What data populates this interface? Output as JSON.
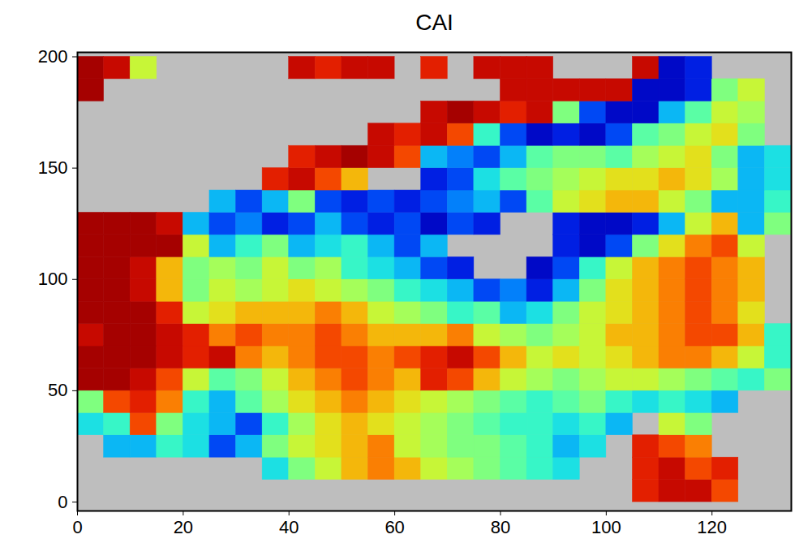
{
  "chart_data": {
    "type": "heatmap",
    "title": "CAI",
    "xlim": [
      0,
      135
    ],
    "xticks": [
      0,
      20,
      40,
      60,
      80,
      100,
      120
    ],
    "ylim": [
      -4,
      202
    ],
    "yticks": [
      0,
      50,
      100,
      150,
      200
    ],
    "color_range": [
      0,
      1
    ],
    "x_edges": [
      0,
      5,
      10,
      15,
      20,
      25,
      30,
      35,
      40,
      45,
      50,
      55,
      60,
      65,
      70,
      75,
      80,
      85,
      90,
      95,
      100,
      105,
      110,
      115,
      120,
      125,
      130,
      135
    ],
    "y_edges": [
      0,
      10,
      20,
      30,
      40,
      50,
      60,
      70,
      80,
      90,
      100,
      110,
      120,
      130,
      140,
      150,
      160,
      170,
      180,
      190,
      200
    ],
    "z": [
      [
        null,
        null,
        null,
        null,
        null,
        null,
        null,
        null,
        null,
        null,
        null,
        null,
        null,
        null,
        null,
        null,
        null,
        null,
        null,
        null,
        null,
        0.85,
        0.9,
        0.9,
        0.8,
        null,
        null
      ],
      [
        null,
        null,
        null,
        null,
        null,
        null,
        null,
        0.35,
        0.5,
        0.6,
        0.7,
        0.75,
        0.7,
        0.6,
        0.55,
        0.5,
        0.45,
        0.4,
        0.35,
        null,
        null,
        0.85,
        0.9,
        0.8,
        0.85,
        null,
        null
      ],
      [
        null,
        0.3,
        0.3,
        0.4,
        0.35,
        0.2,
        0.3,
        0.5,
        0.6,
        0.65,
        0.7,
        0.75,
        0.6,
        0.55,
        0.5,
        0.5,
        0.45,
        0.4,
        0.3,
        0.35,
        null,
        0.85,
        0.8,
        0.75,
        null,
        null,
        null
      ],
      [
        0.35,
        0.4,
        0.8,
        0.5,
        0.35,
        0.3,
        0.2,
        0.4,
        0.55,
        0.65,
        0.7,
        0.65,
        0.6,
        0.55,
        0.5,
        0.45,
        0.4,
        0.4,
        0.35,
        0.4,
        0.3,
        null,
        0.6,
        0.5,
        null,
        null,
        null
      ],
      [
        0.5,
        0.8,
        0.85,
        0.75,
        0.4,
        0.3,
        0.45,
        0.55,
        0.65,
        0.7,
        0.75,
        0.7,
        0.65,
        0.6,
        0.55,
        0.5,
        0.45,
        0.4,
        0.45,
        0.5,
        0.4,
        0.35,
        0.4,
        0.35,
        0.3,
        null,
        null
      ],
      [
        0.95,
        0.95,
        0.9,
        0.8,
        0.6,
        0.45,
        0.5,
        0.6,
        0.7,
        0.75,
        0.8,
        0.75,
        0.7,
        0.85,
        0.8,
        0.7,
        0.6,
        0.55,
        0.5,
        0.55,
        0.6,
        0.6,
        0.55,
        0.5,
        0.45,
        0.4,
        0.5
      ],
      [
        0.95,
        0.95,
        0.95,
        0.9,
        0.85,
        0.9,
        0.75,
        0.7,
        0.75,
        0.8,
        0.8,
        0.75,
        0.8,
        0.85,
        0.9,
        0.8,
        0.7,
        0.6,
        0.65,
        0.6,
        0.65,
        0.7,
        0.75,
        0.75,
        0.7,
        0.6,
        0.4
      ],
      [
        0.9,
        0.95,
        0.95,
        0.9,
        0.85,
        0.75,
        0.8,
        0.75,
        0.75,
        0.8,
        0.75,
        0.7,
        0.7,
        0.7,
        0.75,
        0.6,
        0.55,
        0.5,
        0.55,
        0.6,
        0.7,
        0.7,
        0.75,
        0.8,
        0.8,
        0.7,
        0.4
      ],
      [
        0.95,
        0.95,
        0.95,
        0.85,
        0.6,
        0.65,
        0.7,
        0.7,
        0.7,
        0.75,
        0.7,
        0.6,
        0.55,
        0.5,
        0.4,
        0.45,
        0.3,
        0.35,
        0.5,
        0.6,
        0.65,
        0.7,
        0.75,
        0.8,
        0.75,
        0.65,
        null
      ],
      [
        0.95,
        0.95,
        0.9,
        0.7,
        0.5,
        0.6,
        0.55,
        0.6,
        0.65,
        0.6,
        0.55,
        0.5,
        0.4,
        0.35,
        0.3,
        0.2,
        0.25,
        0.15,
        0.3,
        0.5,
        0.65,
        0.7,
        0.75,
        0.8,
        0.75,
        0.7,
        null
      ],
      [
        0.95,
        0.95,
        0.9,
        0.7,
        0.5,
        0.55,
        0.5,
        0.6,
        0.5,
        0.55,
        0.4,
        0.35,
        0.3,
        0.2,
        0.15,
        null,
        null,
        0.1,
        0.2,
        0.4,
        0.6,
        0.7,
        0.75,
        0.8,
        0.75,
        0.7,
        null
      ],
      [
        0.95,
        0.95,
        0.95,
        0.95,
        0.6,
        0.3,
        0.4,
        0.5,
        0.3,
        0.35,
        0.4,
        0.3,
        0.2,
        0.3,
        null,
        null,
        null,
        null,
        0.15,
        0.1,
        0.2,
        0.5,
        0.65,
        0.75,
        0.8,
        0.6,
        null
      ],
      [
        0.95,
        0.95,
        0.95,
        0.9,
        0.3,
        0.2,
        0.25,
        0.15,
        0.2,
        0.3,
        0.2,
        0.15,
        0.2,
        0.1,
        0.2,
        0.15,
        null,
        null,
        0.15,
        0.1,
        0.1,
        0.15,
        0.3,
        0.6,
        0.7,
        0.3,
        0.5
      ],
      [
        null,
        null,
        null,
        null,
        null,
        0.3,
        0.2,
        0.3,
        0.5,
        0.2,
        0.15,
        0.2,
        0.15,
        0.2,
        0.25,
        0.3,
        0.2,
        0.45,
        0.6,
        0.65,
        0.7,
        0.7,
        0.6,
        0.5,
        0.3,
        0.3,
        0.4
      ],
      [
        null,
        null,
        null,
        null,
        null,
        null,
        null,
        0.85,
        0.9,
        0.8,
        0.7,
        null,
        null,
        0.15,
        0.2,
        0.35,
        0.45,
        0.5,
        0.55,
        0.6,
        0.65,
        0.65,
        0.7,
        0.65,
        0.55,
        0.3,
        0.35
      ],
      [
        null,
        null,
        null,
        null,
        null,
        null,
        null,
        null,
        0.85,
        0.9,
        0.95,
        0.9,
        0.8,
        0.3,
        0.25,
        0.2,
        0.3,
        0.45,
        0.5,
        0.5,
        0.45,
        0.55,
        0.6,
        0.65,
        0.5,
        0.3,
        0.35
      ],
      [
        null,
        null,
        null,
        null,
        null,
        null,
        null,
        null,
        null,
        null,
        null,
        0.9,
        0.85,
        0.9,
        0.8,
        0.4,
        0.2,
        0.1,
        0.15,
        0.1,
        0.2,
        0.45,
        0.5,
        0.6,
        0.65,
        0.5,
        null
      ],
      [
        null,
        null,
        null,
        null,
        null,
        null,
        null,
        null,
        null,
        null,
        null,
        null,
        null,
        0.9,
        0.95,
        0.9,
        0.85,
        0.9,
        0.5,
        0.2,
        0.1,
        0.1,
        0.3,
        0.45,
        0.6,
        0.55,
        null
      ],
      [
        0.95,
        null,
        null,
        null,
        null,
        null,
        null,
        null,
        null,
        null,
        null,
        null,
        null,
        null,
        null,
        null,
        0.9,
        0.9,
        0.9,
        0.9,
        0.9,
        0.1,
        0.1,
        0.15,
        0.5,
        0.6,
        null
      ],
      [
        0.95,
        0.9,
        0.6,
        null,
        null,
        null,
        null,
        null,
        0.9,
        0.85,
        0.9,
        0.9,
        null,
        0.85,
        null,
        0.9,
        0.9,
        0.9,
        null,
        null,
        null,
        0.9,
        0.1,
        0.15,
        null,
        null,
        null
      ]
    ]
  }
}
